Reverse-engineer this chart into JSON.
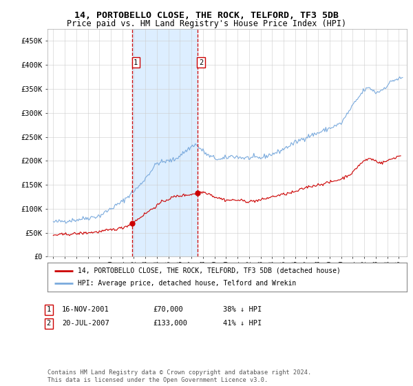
{
  "title": "14, PORTOBELLO CLOSE, THE ROCK, TELFORD, TF3 5DB",
  "subtitle": "Price paid vs. HM Land Registry's House Price Index (HPI)",
  "title_fontsize": 9.5,
  "subtitle_fontsize": 8.5,
  "background_color": "#ffffff",
  "plot_bg_color": "#ffffff",
  "grid_color": "#cccccc",
  "hpi_line_color": "#7aaadd",
  "property_line_color": "#cc0000",
  "sale1_date_num": 2001.88,
  "sale1_price": 70000,
  "sale1_label": "1",
  "sale2_date_num": 2007.55,
  "sale2_price": 133000,
  "sale2_label": "2",
  "shade_color": "#ddeeff",
  "vline_color": "#cc0000",
  "ylim": [
    0,
    475000
  ],
  "xlim_start": 1994.5,
  "xlim_end": 2025.7,
  "legend_property": "14, PORTOBELLO CLOSE, THE ROCK, TELFORD, TF3 5DB (detached house)",
  "legend_hpi": "HPI: Average price, detached house, Telford and Wrekin",
  "table_row1": [
    "1",
    "16-NOV-2001",
    "£70,000",
    "38% ↓ HPI"
  ],
  "table_row2": [
    "2",
    "20-JUL-2007",
    "£133,000",
    "41% ↓ HPI"
  ],
  "footer": "Contains HM Land Registry data © Crown copyright and database right 2024.\nThis data is licensed under the Open Government Licence v3.0.",
  "ylabel_ticks": [
    0,
    50000,
    100000,
    150000,
    200000,
    250000,
    300000,
    350000,
    400000,
    450000
  ],
  "ylabel_labels": [
    "£0",
    "£50K",
    "£100K",
    "£150K",
    "£200K",
    "£250K",
    "£300K",
    "£350K",
    "£400K",
    "£450K"
  ],
  "hpi_anchors": [
    [
      1995.0,
      72000
    ],
    [
      1997.0,
      77000
    ],
    [
      1999.0,
      85000
    ],
    [
      2001.0,
      115000
    ],
    [
      2002.5,
      148000
    ],
    [
      2004.0,
      195000
    ],
    [
      2005.5,
      202000
    ],
    [
      2007.3,
      235000
    ],
    [
      2008.5,
      210000
    ],
    [
      2009.5,
      202000
    ],
    [
      2010.5,
      210000
    ],
    [
      2011.5,
      206000
    ],
    [
      2013.0,
      206000
    ],
    [
      2014.5,
      218000
    ],
    [
      2016.0,
      238000
    ],
    [
      2017.0,
      250000
    ],
    [
      2018.0,
      258000
    ],
    [
      2019.0,
      268000
    ],
    [
      2020.0,
      278000
    ],
    [
      2021.0,
      315000
    ],
    [
      2022.0,
      348000
    ],
    [
      2022.5,
      352000
    ],
    [
      2023.0,
      342000
    ],
    [
      2023.5,
      347000
    ],
    [
      2024.5,
      368000
    ],
    [
      2025.2,
      372000
    ]
  ],
  "prop_anchors": [
    [
      1995.0,
      45000
    ],
    [
      1997.0,
      48000
    ],
    [
      1999.0,
      52000
    ],
    [
      2001.0,
      60000
    ],
    [
      2001.88,
      70000
    ],
    [
      2003.0,
      90000
    ],
    [
      2004.5,
      115000
    ],
    [
      2005.5,
      125000
    ],
    [
      2006.0,
      127000
    ],
    [
      2007.0,
      130000
    ],
    [
      2007.55,
      133000
    ],
    [
      2008.0,
      135000
    ],
    [
      2008.5,
      132000
    ],
    [
      2009.0,
      125000
    ],
    [
      2010.0,
      118000
    ],
    [
      2011.0,
      118000
    ],
    [
      2012.0,
      115000
    ],
    [
      2013.0,
      118000
    ],
    [
      2014.0,
      125000
    ],
    [
      2015.0,
      130000
    ],
    [
      2016.0,
      135000
    ],
    [
      2017.0,
      145000
    ],
    [
      2018.0,
      150000
    ],
    [
      2019.0,
      155000
    ],
    [
      2020.0,
      162000
    ],
    [
      2021.0,
      175000
    ],
    [
      2021.5,
      190000
    ],
    [
      2022.0,
      200000
    ],
    [
      2022.5,
      205000
    ],
    [
      2023.0,
      200000
    ],
    [
      2023.5,
      195000
    ],
    [
      2024.0,
      200000
    ],
    [
      2024.5,
      205000
    ],
    [
      2025.0,
      210000
    ]
  ]
}
